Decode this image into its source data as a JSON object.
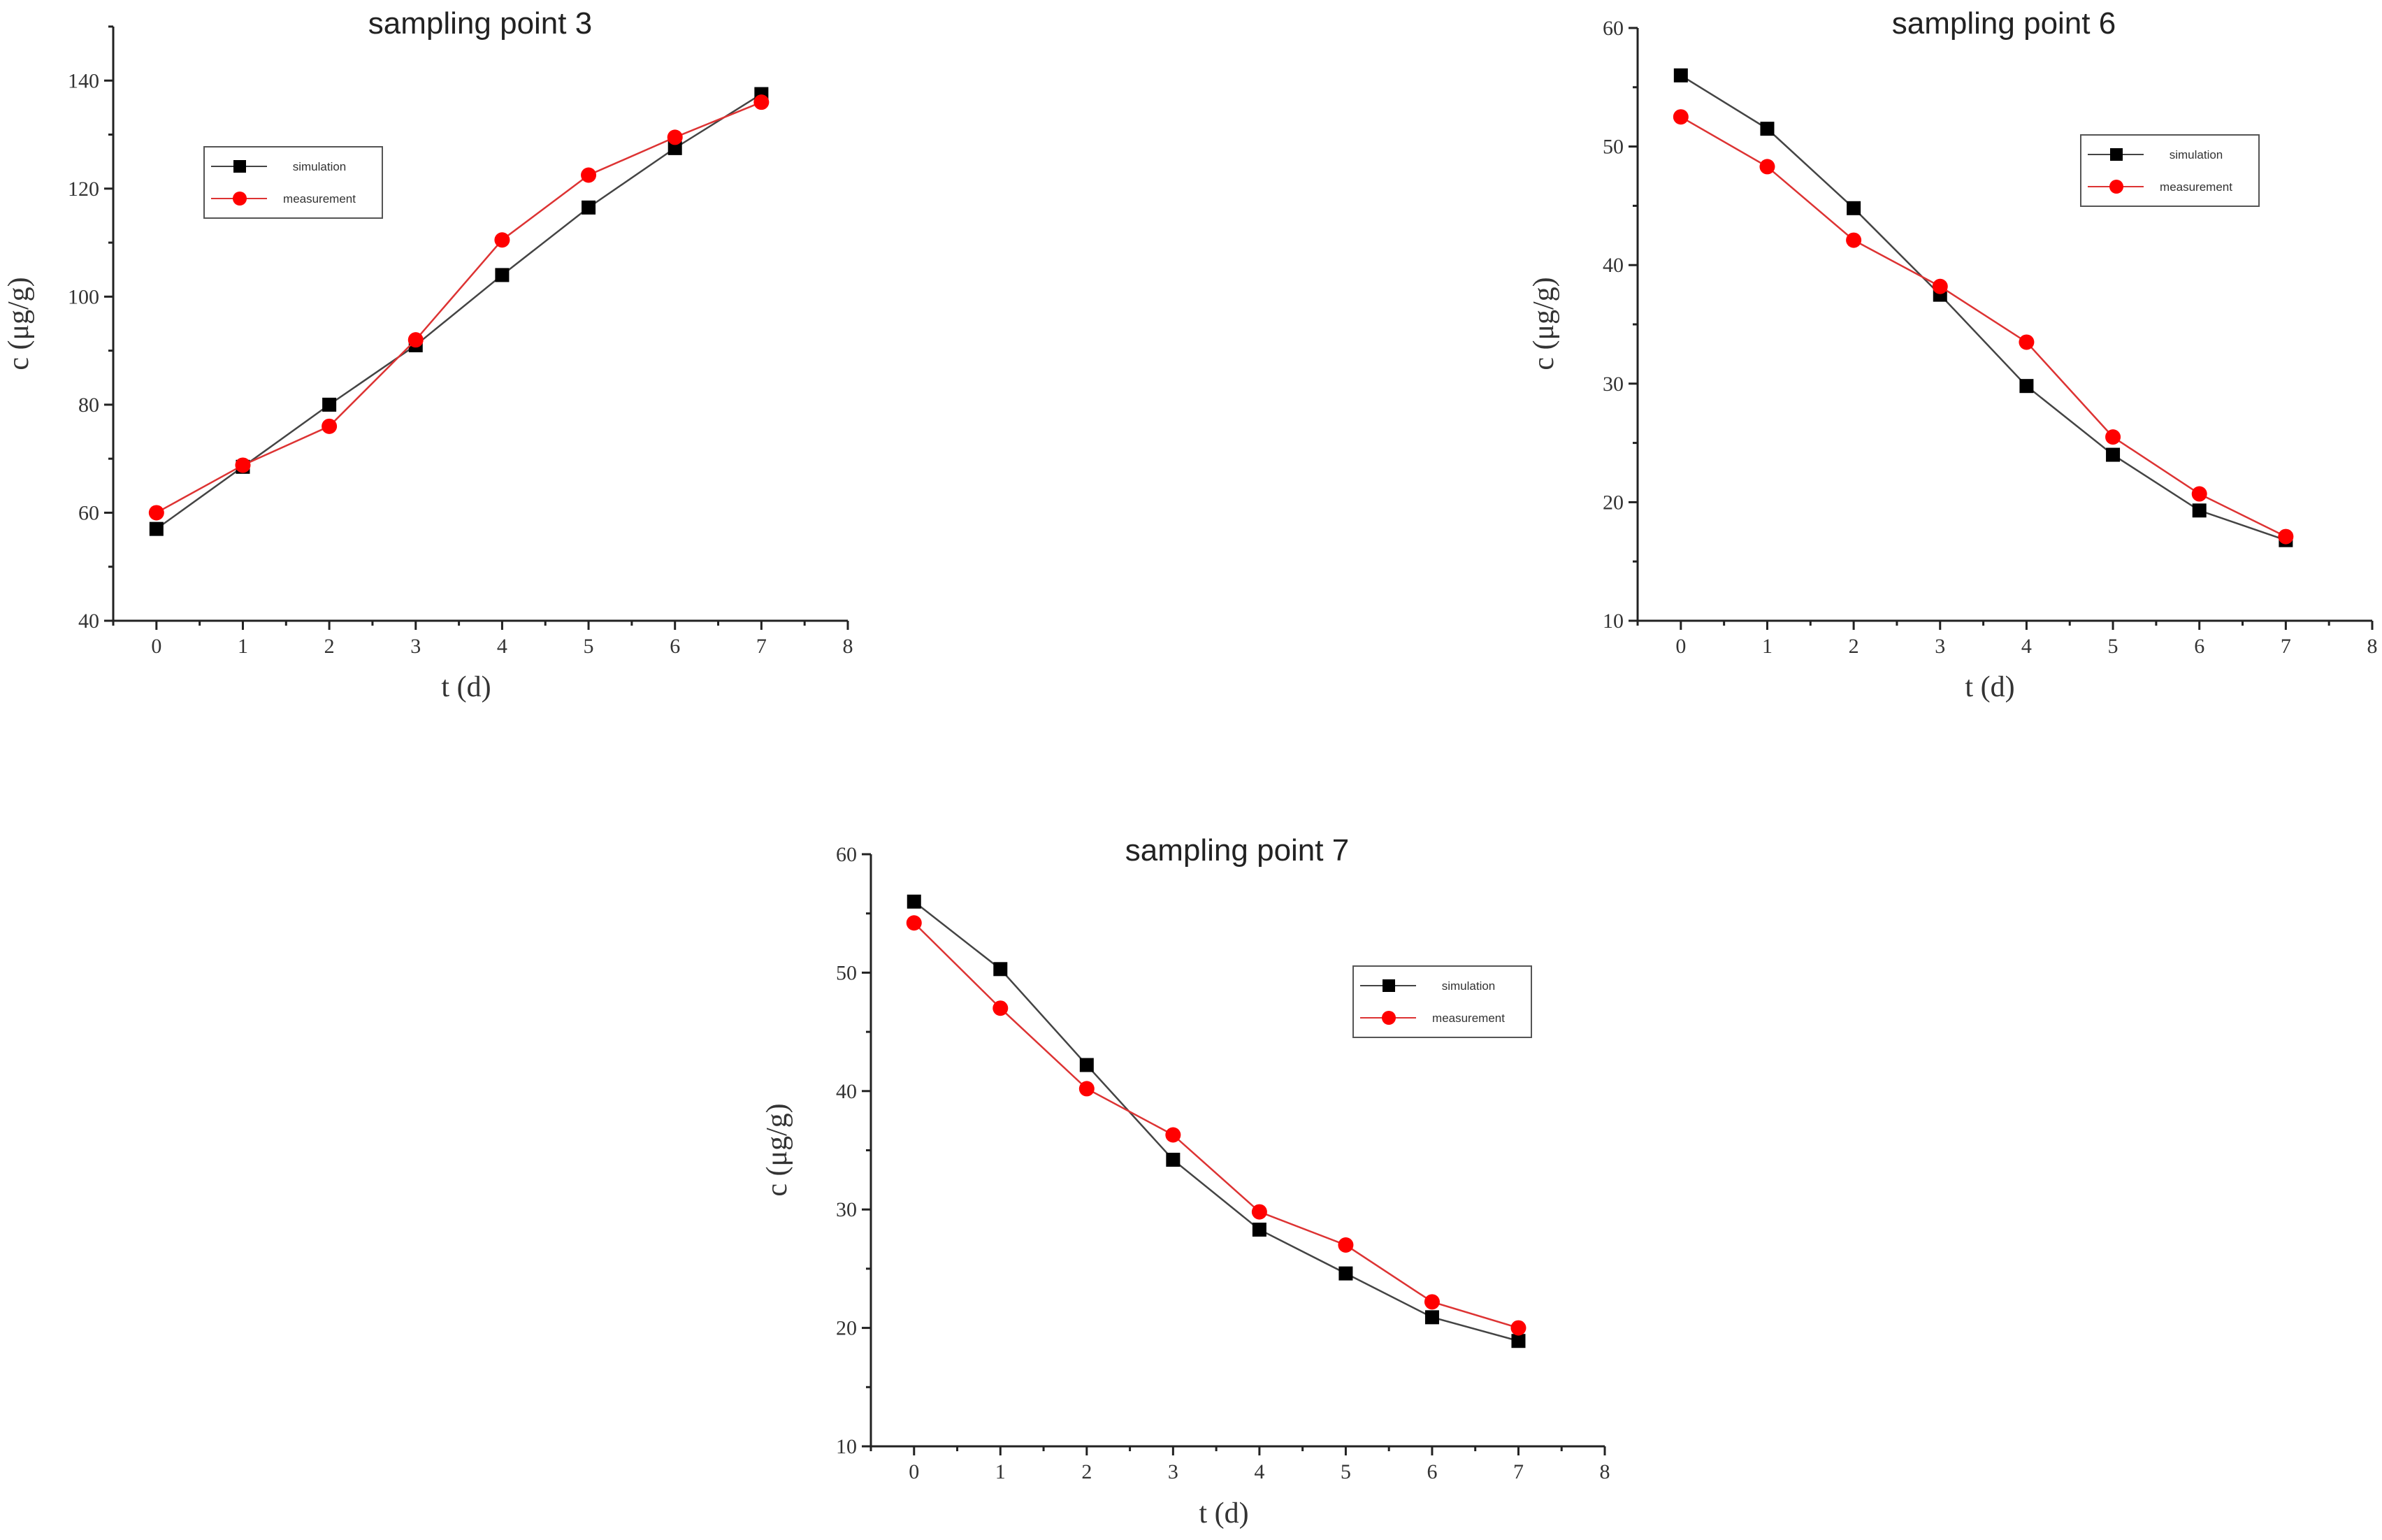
{
  "colors": {
    "simulation": "#000000",
    "measurement": "#ff0000",
    "line_simulation": "#444444",
    "line_measurement": "#dd3333"
  },
  "chart_data": [
    {
      "type": "line",
      "title": "sampling point 3",
      "xlabel": "t (d)",
      "ylabel": "c (μg/g)",
      "xlim": [
        -0.5,
        8
      ],
      "ylim": [
        40,
        150
      ],
      "xticks": [
        0,
        1,
        2,
        3,
        4,
        5,
        6,
        7,
        8
      ],
      "yticks": [
        40,
        60,
        80,
        100,
        120,
        140
      ],
      "x": [
        0,
        1,
        2,
        3,
        4,
        5,
        6,
        7
      ],
      "legend": {
        "position": "upper-left",
        "entries": [
          "simulation",
          "measurement"
        ]
      },
      "series": [
        {
          "name": "simulation",
          "marker": "square",
          "values": [
            57,
            68.5,
            80,
            91,
            104,
            116.5,
            127.5,
            137.5
          ]
        },
        {
          "name": "measurement",
          "marker": "circle",
          "values": [
            60,
            68.8,
            76,
            92,
            110.5,
            122.5,
            129.5,
            136
          ]
        }
      ]
    },
    {
      "type": "line",
      "title": "sampling point 6",
      "xlabel": "t (d)",
      "ylabel": "c (μg/g)",
      "xlim": [
        -0.5,
        8
      ],
      "ylim": [
        10,
        60
      ],
      "xticks": [
        0,
        1,
        2,
        3,
        4,
        5,
        6,
        7,
        8
      ],
      "yticks": [
        10,
        20,
        30,
        40,
        50,
        60
      ],
      "x": [
        0,
        1,
        2,
        3,
        4,
        5,
        6,
        7
      ],
      "legend": {
        "position": "upper-right",
        "entries": [
          "simulation",
          "measurement"
        ]
      },
      "series": [
        {
          "name": "simulation",
          "marker": "square",
          "values": [
            56,
            51.5,
            44.8,
            37.5,
            29.8,
            24,
            19.3,
            16.8
          ]
        },
        {
          "name": "measurement",
          "marker": "circle",
          "values": [
            52.5,
            48.3,
            42.1,
            38.2,
            33.5,
            25.5,
            20.7,
            17.1
          ]
        }
      ]
    },
    {
      "type": "line",
      "title": "sampling point 7",
      "xlabel": "t (d)",
      "ylabel": "c (μg/g)",
      "xlim": [
        -0.5,
        8
      ],
      "ylim": [
        10,
        60
      ],
      "xticks": [
        0,
        1,
        2,
        3,
        4,
        5,
        6,
        7,
        8
      ],
      "yticks": [
        10,
        20,
        30,
        40,
        50,
        60
      ],
      "x": [
        0,
        1,
        2,
        3,
        4,
        5,
        6,
        7
      ],
      "legend": {
        "position": "upper-right",
        "entries": [
          "simulation",
          "measurement"
        ]
      },
      "series": [
        {
          "name": "simulation",
          "marker": "square",
          "values": [
            56,
            50.3,
            42.2,
            34.2,
            28.3,
            24.6,
            20.9,
            18.9
          ]
        },
        {
          "name": "measurement",
          "marker": "circle",
          "values": [
            54.2,
            47,
            40.2,
            36.3,
            29.8,
            27,
            22.2,
            20
          ]
        }
      ]
    }
  ]
}
